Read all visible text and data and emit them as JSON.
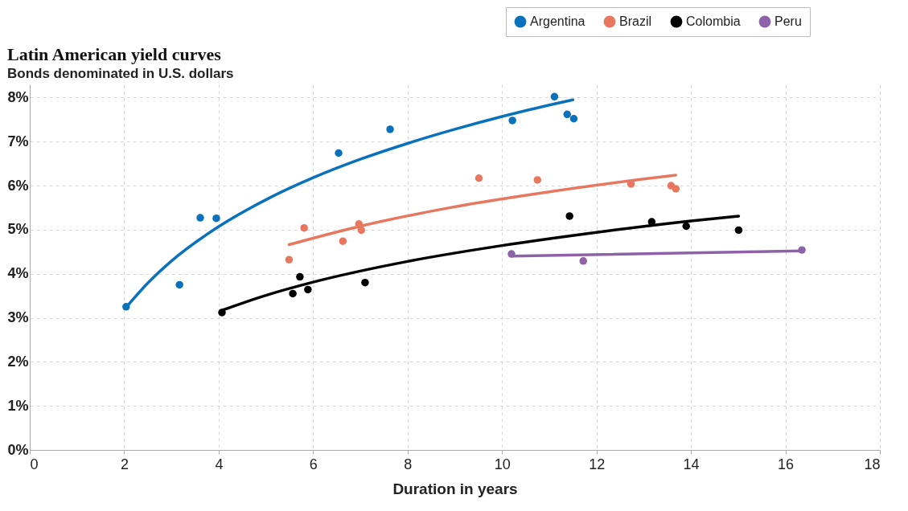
{
  "chart_data": {
    "type": "scatter",
    "title": "Latin American yield curves",
    "subtitle": "Bonds denominated in U.S. dollars",
    "xlabel": "Duration in years",
    "xlim": [
      0,
      18
    ],
    "xticks": [
      0,
      2,
      4,
      6,
      8,
      10,
      12,
      14,
      16,
      18
    ],
    "ylim": [
      0,
      8.3
    ],
    "yticks": [
      {
        "value": 0,
        "label": "0%"
      },
      {
        "value": 1,
        "label": "1%"
      },
      {
        "value": 2,
        "label": "2%"
      },
      {
        "value": 3,
        "label": "3%"
      },
      {
        "value": 4,
        "label": "4%"
      },
      {
        "value": 5,
        "label": "5%"
      },
      {
        "value": 6,
        "label": "6%"
      },
      {
        "value": 7,
        "label": "7%"
      },
      {
        "value": 8,
        "label": "8%"
      }
    ],
    "grid": true,
    "legend": "top right",
    "marker": "circle",
    "series": [
      {
        "name": "Argentina",
        "color": "#0a72bd",
        "x": [
          2.04,
          3.17,
          3.61,
          3.95,
          6.54,
          7.63,
          10.22,
          11.11,
          11.38,
          11.52
        ],
        "values": [
          3.25,
          3.75,
          5.27,
          5.26,
          6.74,
          7.28,
          7.48,
          8.02,
          7.62,
          7.52
        ]
      },
      {
        "name": "Brazil",
        "color": "#e8775f",
        "x": [
          5.49,
          5.81,
          6.63,
          6.97,
          7.02,
          9.51,
          10.75,
          12.73,
          13.58,
          13.68
        ],
        "values": [
          4.32,
          5.04,
          4.74,
          5.13,
          4.99,
          6.17,
          6.13,
          6.04,
          6.0,
          5.93
        ]
      },
      {
        "name": "Colombia",
        "color": "#000000",
        "x": [
          4.07,
          5.57,
          5.72,
          5.89,
          7.1,
          11.43,
          13.17,
          13.9,
          15.01
        ],
        "values": [
          3.12,
          3.55,
          3.93,
          3.64,
          3.8,
          5.31,
          5.18,
          5.08,
          4.99
        ]
      },
      {
        "name": "Peru",
        "color": "#8e62a9",
        "x": [
          10.2,
          11.72,
          16.35
        ],
        "values": [
          4.45,
          4.29,
          4.54
        ]
      },
      {
        "type": "line",
        "marker": "none",
        "color": "#0a72bd",
        "x": [
          2.05,
          2.5,
          3,
          4,
          5,
          6,
          7,
          8,
          9,
          10,
          11,
          11.5
        ],
        "values": [
          3.25,
          3.79,
          4.29,
          5.07,
          5.68,
          6.18,
          6.6,
          6.96,
          7.28,
          7.57,
          7.83,
          7.95
        ]
      },
      {
        "type": "line",
        "marker": "none",
        "color": "#e8775f",
        "x": [
          5.49,
          7,
          9,
          11,
          13,
          13.68
        ],
        "values": [
          4.66,
          5.08,
          5.52,
          5.86,
          6.15,
          6.24
        ]
      },
      {
        "type": "line",
        "marker": "none",
        "color": "#000000",
        "x": [
          4.07,
          5,
          6,
          8,
          10,
          12,
          14,
          15.01
        ],
        "values": [
          3.17,
          3.51,
          3.81,
          4.28,
          4.64,
          4.94,
          5.2,
          5.31
        ]
      },
      {
        "type": "line",
        "marker": "none",
        "color": "#8e62a9",
        "x": [
          10.2,
          16.35
        ],
        "values": [
          4.4,
          4.52
        ]
      }
    ]
  }
}
